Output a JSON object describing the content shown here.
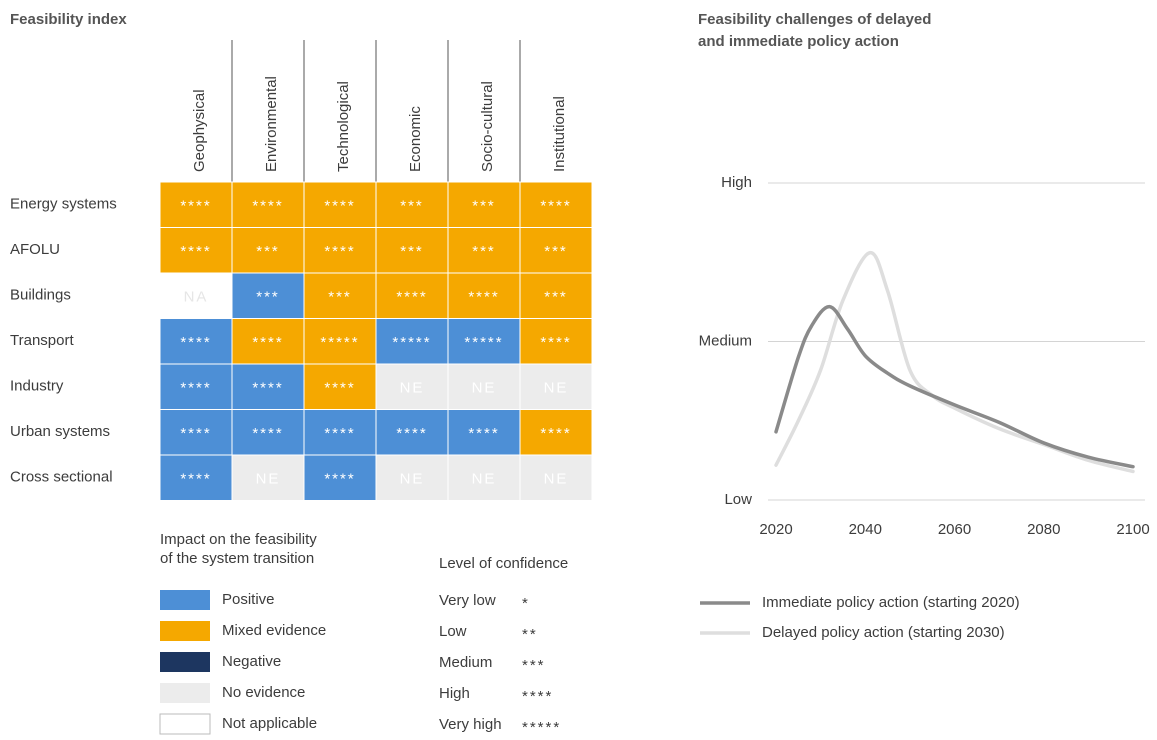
{
  "feasibility_index": {
    "title": "Feasibility index",
    "columns": [
      "Geophysical",
      "Environmental",
      "Technological",
      "Economic",
      "Socio-cultural",
      "Institutional"
    ],
    "rows": [
      {
        "label": "Energy systems",
        "cells": [
          {
            "color": "#f5a800",
            "label": "****"
          },
          {
            "color": "#f5a800",
            "label": "****"
          },
          {
            "color": "#f5a800",
            "label": "****"
          },
          {
            "color": "#f5a800",
            "label": "***"
          },
          {
            "color": "#f5a800",
            "label": "***"
          },
          {
            "color": "#f5a800",
            "label": "****"
          }
        ]
      },
      {
        "label": "AFOLU",
        "cells": [
          {
            "color": "#f5a800",
            "label": "****"
          },
          {
            "color": "#f5a800",
            "label": "***"
          },
          {
            "color": "#f5a800",
            "label": "****"
          },
          {
            "color": "#f5a800",
            "label": "***"
          },
          {
            "color": "#f5a800",
            "label": "***"
          },
          {
            "color": "#f5a800",
            "label": "***"
          }
        ]
      },
      {
        "label": "Buildings",
        "cells": [
          {
            "color": "#ffffff",
            "label": "NA"
          },
          {
            "color": "#4d8fd6",
            "label": "***"
          },
          {
            "color": "#f5a800",
            "label": "***"
          },
          {
            "color": "#f5a800",
            "label": "****"
          },
          {
            "color": "#f5a800",
            "label": "****"
          },
          {
            "color": "#f5a800",
            "label": "***"
          }
        ]
      },
      {
        "label": "Transport",
        "cells": [
          {
            "color": "#4d8fd6",
            "label": "****"
          },
          {
            "color": "#f5a800",
            "label": "****"
          },
          {
            "color": "#f5a800",
            "label": "*****"
          },
          {
            "color": "#4d8fd6",
            "label": "*****"
          },
          {
            "color": "#4d8fd6",
            "label": "*****"
          },
          {
            "color": "#f5a800",
            "label": "****"
          }
        ]
      },
      {
        "label": "Industry",
        "cells": [
          {
            "color": "#4d8fd6",
            "label": "****"
          },
          {
            "color": "#4d8fd6",
            "label": "****"
          },
          {
            "color": "#f5a800",
            "label": "****"
          },
          {
            "color": "#ececec",
            "label": "NE"
          },
          {
            "color": "#ececec",
            "label": "NE"
          },
          {
            "color": "#ececec",
            "label": "NE"
          }
        ]
      },
      {
        "label": "Urban systems",
        "cells": [
          {
            "color": "#4d8fd6",
            "label": "****"
          },
          {
            "color": "#4d8fd6",
            "label": "****"
          },
          {
            "color": "#4d8fd6",
            "label": "****"
          },
          {
            "color": "#4d8fd6",
            "label": "****"
          },
          {
            "color": "#4d8fd6",
            "label": "****"
          },
          {
            "color": "#f5a800",
            "label": "****"
          }
        ]
      },
      {
        "label": "Cross sectional",
        "cells": [
          {
            "color": "#4d8fd6",
            "label": "****"
          },
          {
            "color": "#ececec",
            "label": "NE"
          },
          {
            "color": "#4d8fd6",
            "label": "****"
          },
          {
            "color": "#ececec",
            "label": "NE"
          },
          {
            "color": "#ececec",
            "label": "NE"
          },
          {
            "color": "#ececec",
            "label": "NE"
          }
        ]
      }
    ],
    "impact_legend": {
      "title": [
        "Impact on the feasibility",
        "of the system transition"
      ],
      "items": [
        {
          "label": "Positive",
          "color": "#4d8fd6"
        },
        {
          "label": "Mixed evidence",
          "color": "#f5a800"
        },
        {
          "label": "Negative",
          "color": "#1d3660"
        },
        {
          "label": "No evidence",
          "color": "#ececec"
        },
        {
          "label": "Not applicable",
          "color": "#ffffff"
        }
      ]
    },
    "confidence_legend": {
      "title": "Level of confidence",
      "items": [
        {
          "label": "Very low",
          "stars": "*"
        },
        {
          "label": "Low",
          "stars": "**"
        },
        {
          "label": "Medium",
          "stars": "***"
        },
        {
          "label": "High",
          "stars": "****"
        },
        {
          "label": "Very high",
          "stars": "*****"
        }
      ]
    }
  },
  "chart_data": {
    "type": "line",
    "title": [
      "Feasibility challenges of delayed",
      "and immediate policy action"
    ],
    "xlim": [
      2020,
      2100
    ],
    "xticks": [
      2020,
      2040,
      2060,
      2080,
      2100
    ],
    "ylim": [
      0,
      2
    ],
    "yticks": [
      {
        "value": 0,
        "label": "Low"
      },
      {
        "value": 1,
        "label": "Medium"
      },
      {
        "value": 2,
        "label": "High"
      }
    ],
    "grid": true,
    "series": [
      {
        "name": "Immediate policy action (starting 2020)",
        "color": "#8a8a8a",
        "x": [
          2020,
          2025,
          2028,
          2032,
          2036,
          2040,
          2045,
          2050,
          2060,
          2070,
          2080,
          2090,
          2100
        ],
        "values": [
          0.43,
          0.9,
          1.1,
          1.22,
          1.08,
          0.91,
          0.8,
          0.72,
          0.6,
          0.49,
          0.36,
          0.27,
          0.21
        ]
      },
      {
        "name": "Delayed policy action (starting 2030)",
        "color": "#dedede",
        "x": [
          2020,
          2025,
          2030,
          2035,
          2041,
          2045,
          2050,
          2055,
          2060,
          2070,
          2080,
          2090,
          2100
        ],
        "values": [
          0.22,
          0.5,
          0.82,
          1.26,
          1.56,
          1.32,
          0.82,
          0.66,
          0.58,
          0.45,
          0.35,
          0.25,
          0.18
        ]
      }
    ]
  }
}
